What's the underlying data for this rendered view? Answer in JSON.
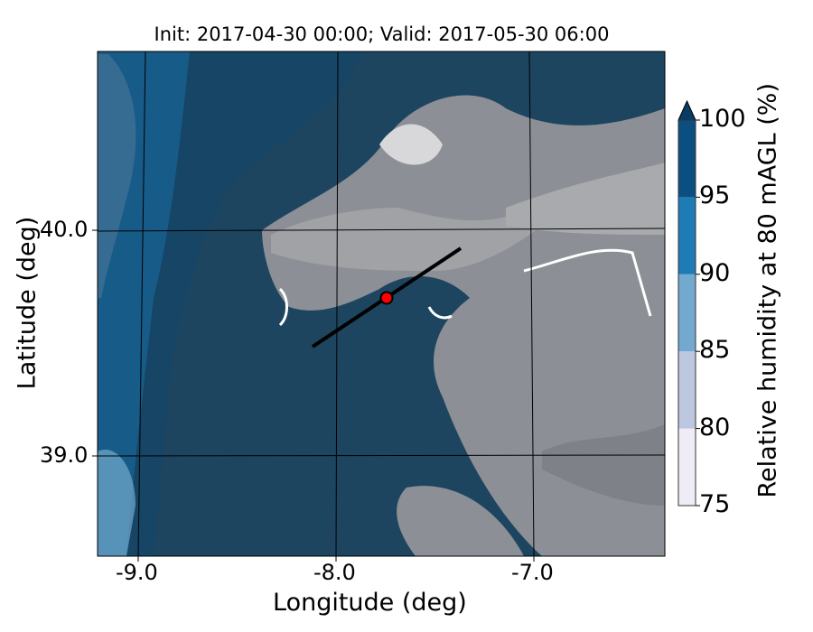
{
  "title": "Init: 2017-04-30 00:00; Valid: 2017-05-30 06:00",
  "xlabel": "Longitude (deg)",
  "ylabel": "Latitude (deg)",
  "xticks": [
    "-9.0",
    "-8.0",
    "-7.0"
  ],
  "yticks": [
    "40.0",
    "39.0"
  ],
  "colorbar": {
    "label": "Relative humidity at 80 mAGL (%)",
    "ticks": [
      "100",
      "95",
      "90",
      "85",
      "80",
      "75"
    ],
    "levels": [
      75,
      80,
      85,
      90,
      95,
      100
    ],
    "colors": [
      "#efecf5",
      "#bdc7e0",
      "#74a9cf",
      "#1f7bb5",
      "#0a4f80"
    ],
    "extend_color": "#083c62",
    "extend": "max"
  },
  "chart_data": {
    "type": "heatmap",
    "title": "Init: 2017-04-30 00:00; Valid: 2017-05-30 06:00",
    "xlabel": "Longitude (deg)",
    "ylabel": "Latitude (deg)",
    "xlim": [
      -9.2,
      -6.65
    ],
    "ylim": [
      38.55,
      40.8
    ],
    "grid": true,
    "cross_section_line": {
      "start": [
        -8.1,
        39.5
      ],
      "end": [
        -7.35,
        39.93
      ]
    },
    "marker": {
      "lon": -7.73,
      "lat": 39.7,
      "color": "#ff0000"
    }
  }
}
